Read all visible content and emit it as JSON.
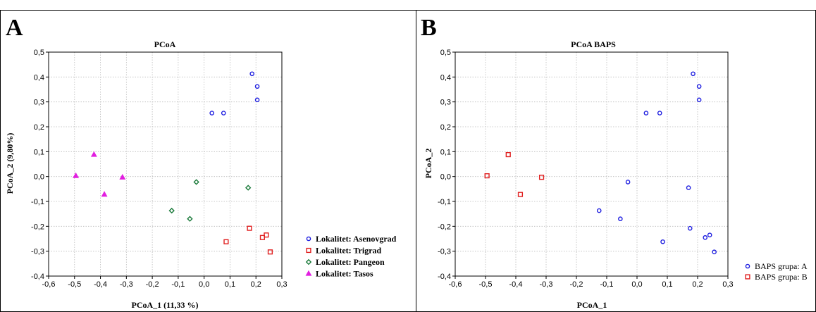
{
  "colors": {
    "blue": "#1f1fe0",
    "red": "#e01f1f",
    "green": "#1a7a3a",
    "magenta": "#e21fe0",
    "frame": "#000000",
    "grid": "#bbbbbb"
  },
  "chart_data": [
    {
      "panel": "A",
      "type": "scatter",
      "title": "PCoA",
      "xlabel": "PCoA_1 (11,33 %)",
      "ylabel": "PCoA_2 (9,80%)",
      "xlim": [
        -0.6,
        0.3
      ],
      "ylim": [
        -0.4,
        0.5
      ],
      "xticks": [
        "-0,6",
        "-0,5",
        "-0,4",
        "-0,3",
        "-0,2",
        "-0,1",
        "0,0",
        "0,1",
        "0,2",
        "0,3"
      ],
      "yticks": [
        "-0,4",
        "-0,3",
        "-0,2",
        "-0,1",
        "0,0",
        "0,1",
        "0,2",
        "0,3",
        "0,4",
        "0,5"
      ],
      "grid": true,
      "legend_position": "right",
      "legend_bold": true,
      "series": [
        {
          "name": "Lokalitet: Asenovgrad",
          "marker": "circle",
          "color": "#1f1fe0",
          "points": [
            [
              0.03,
              0.255
            ],
            [
              0.075,
              0.255
            ],
            [
              0.185,
              0.413
            ],
            [
              0.205,
              0.362
            ],
            [
              0.205,
              0.308
            ]
          ]
        },
        {
          "name": "Lokalitet: Trigrad",
          "marker": "square",
          "color": "#e01f1f",
          "points": [
            [
              0.085,
              -0.262
            ],
            [
              0.175,
              -0.208
            ],
            [
              0.225,
              -0.245
            ],
            [
              0.24,
              -0.235
            ],
            [
              0.255,
              -0.303
            ]
          ]
        },
        {
          "name": "Lokalitet: Pangeon",
          "marker": "diamond",
          "color": "#1a7a3a",
          "points": [
            [
              -0.125,
              -0.137
            ],
            [
              -0.055,
              -0.17
            ],
            [
              -0.03,
              -0.022
            ],
            [
              0.17,
              -0.045
            ]
          ]
        },
        {
          "name": "Lokalitet: Tasos",
          "marker": "triangle",
          "color": "#e21fe0",
          "points": [
            [
              -0.495,
              0.003
            ],
            [
              -0.425,
              0.088
            ],
            [
              -0.385,
              -0.072
            ],
            [
              -0.315,
              -0.003
            ]
          ]
        }
      ]
    },
    {
      "panel": "B",
      "type": "scatter",
      "title": "PCoA BAPS",
      "xlabel": "PCoA_1",
      "ylabel": "PCoA_2",
      "xlim": [
        -0.6,
        0.3
      ],
      "ylim": [
        -0.4,
        0.5
      ],
      "xticks": [
        "-0,6",
        "-0,5",
        "-0,4",
        "-0,3",
        "-0,2",
        "-0,1",
        "0,0",
        "0,1",
        "0,2",
        "0,3"
      ],
      "yticks": [
        "-0,4",
        "-0,3",
        "-0,2",
        "-0,1",
        "0,0",
        "0,1",
        "0,2",
        "0,3",
        "0,4",
        "0,5"
      ],
      "grid": true,
      "legend_position": "right",
      "legend_bold": false,
      "series": [
        {
          "name": "BAPS grupa: A",
          "marker": "circle",
          "color": "#1f1fe0",
          "points": [
            [
              0.03,
              0.255
            ],
            [
              0.075,
              0.255
            ],
            [
              0.185,
              0.413
            ],
            [
              0.205,
              0.362
            ],
            [
              0.205,
              0.308
            ],
            [
              -0.03,
              -0.022
            ],
            [
              -0.125,
              -0.137
            ],
            [
              -0.055,
              -0.17
            ],
            [
              0.17,
              -0.045
            ],
            [
              0.175,
              -0.208
            ],
            [
              0.085,
              -0.262
            ],
            [
              0.225,
              -0.245
            ],
            [
              0.24,
              -0.235
            ],
            [
              0.255,
              -0.303
            ]
          ]
        },
        {
          "name": "BAPS grupa: B",
          "marker": "square",
          "color": "#e01f1f",
          "points": [
            [
              -0.495,
              0.003
            ],
            [
              -0.425,
              0.088
            ],
            [
              -0.385,
              -0.072
            ],
            [
              -0.315,
              -0.003
            ]
          ]
        }
      ]
    }
  ]
}
